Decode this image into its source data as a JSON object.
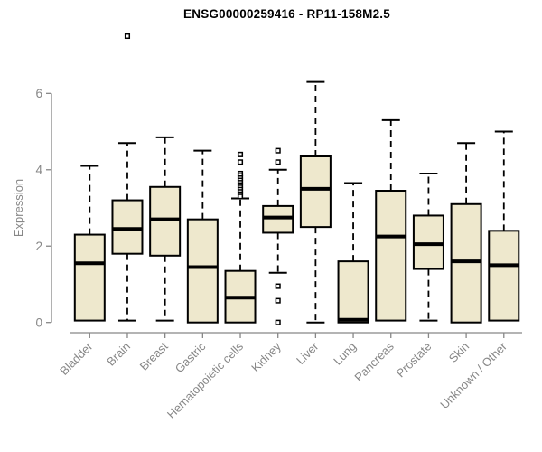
{
  "page": {
    "title": "ENSG00000259416 - RP11-158M2.5"
  },
  "colors": {
    "box_fill": "#EEE8CD",
    "box_stroke": "#000000",
    "median_color": "#000000",
    "whisker_color": "#000000",
    "outlier_stroke": "#000000",
    "outlier_fill": "#ffffff",
    "axis_color": "#878787",
    "tick_label_color": "#878787",
    "title_color": "#000000",
    "background": "#ffffff"
  },
  "chart_data": {
    "type": "boxplot",
    "title": "ENSG00000259416 - RP11-158M2.5",
    "xlabel": "",
    "ylabel": "Expression",
    "ylim": [
      0,
      6.3
    ],
    "yticks": [
      0,
      2,
      4,
      6
    ],
    "grid": false,
    "legend": false,
    "x_tick_rotation": -45,
    "categories": [
      "Bladder",
      "Brain",
      "Breast",
      "Gastric",
      "Hematopoietic cells",
      "Kidney",
      "Liver",
      "Lung",
      "Pancreas",
      "Prostate",
      "Skin",
      "Unknown / Other"
    ],
    "series": [
      {
        "name": "Bladder",
        "whisker_low": 0.05,
        "q1": 0.05,
        "median": 1.55,
        "q3": 2.3,
        "whisker_high": 4.1,
        "outliers": []
      },
      {
        "name": "Brain",
        "whisker_low": 0.05,
        "q1": 1.8,
        "median": 2.45,
        "q3": 3.2,
        "whisker_high": 4.7,
        "outliers": [
          7.5
        ]
      },
      {
        "name": "Breast",
        "whisker_low": 0.05,
        "q1": 1.75,
        "median": 2.7,
        "q3": 3.55,
        "whisker_high": 4.85,
        "outliers": []
      },
      {
        "name": "Gastric",
        "whisker_low": 0.0,
        "q1": 0.0,
        "median": 1.45,
        "q3": 2.7,
        "whisker_high": 4.5,
        "outliers": []
      },
      {
        "name": "Hematopoietic cells",
        "whisker_low": 0.0,
        "q1": 0.0,
        "median": 0.65,
        "q3": 1.35,
        "whisker_high": 3.25,
        "outliers": [
          4.4,
          4.2,
          3.9,
          3.84,
          3.78,
          3.72,
          3.66,
          3.6,
          3.54,
          3.48,
          3.42,
          3.36,
          3.3
        ]
      },
      {
        "name": "Kidney",
        "whisker_low": 1.3,
        "q1": 2.35,
        "median": 2.75,
        "q3": 3.05,
        "whisker_high": 4.0,
        "outliers": [
          4.5,
          4.2,
          0.95,
          0.57,
          0.0
        ]
      },
      {
        "name": "Liver",
        "whisker_low": 0.0,
        "q1": 2.5,
        "median": 3.5,
        "q3": 4.35,
        "whisker_high": 6.3,
        "outliers": []
      },
      {
        "name": "Lung",
        "whisker_low": 0.0,
        "q1": 0.0,
        "median": 0.07,
        "q3": 1.6,
        "whisker_high": 3.65,
        "outliers": []
      },
      {
        "name": "Pancreas",
        "whisker_low": 0.05,
        "q1": 0.05,
        "median": 2.25,
        "q3": 3.45,
        "whisker_high": 5.3,
        "outliers": []
      },
      {
        "name": "Prostate",
        "whisker_low": 0.05,
        "q1": 1.4,
        "median": 2.05,
        "q3": 2.8,
        "whisker_high": 3.9,
        "outliers": []
      },
      {
        "name": "Skin",
        "whisker_low": 0.0,
        "q1": 0.0,
        "median": 1.6,
        "q3": 3.1,
        "whisker_high": 4.7,
        "outliers": []
      },
      {
        "name": "Unknown / Other",
        "whisker_low": 0.05,
        "q1": 0.05,
        "median": 1.5,
        "q3": 2.4,
        "whisker_high": 5.0,
        "outliers": []
      }
    ]
  }
}
